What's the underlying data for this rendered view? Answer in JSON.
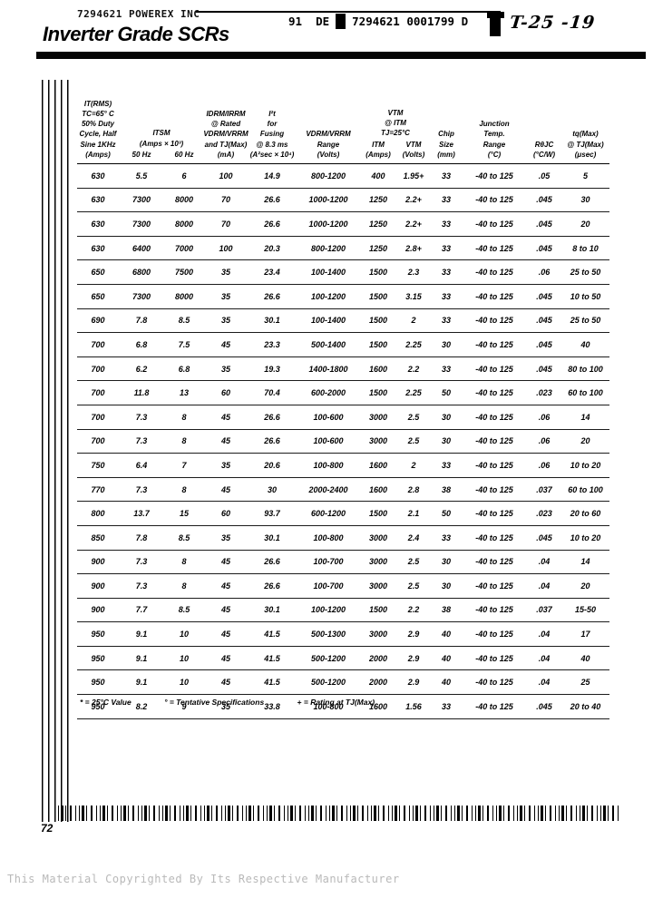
{
  "header": {
    "stamp": "7294621 POWEREX INC",
    "title": "Inverter Grade SCRs",
    "code_left": "91  DE",
    "code_right": "7294621 0001799 D",
    "handwritten_note": "T-25 -19"
  },
  "table": {
    "columns": [
      {
        "label": "IT(RMS)\nTC=65° C\n50% Duty\nCycle, Half\nSine 1KHz\n(Amps)"
      },
      {
        "label": "ITSM\n(Amps × 10³)",
        "subs": [
          "50 Hz",
          "60 Hz"
        ]
      },
      {
        "label": "IDRM/IRRM\n@ Rated\nVDRM/VRRM\nand TJ(Max)\n(mA)"
      },
      {
        "label": "I²t\nfor\nFusing\n@ 8.3 ms\n(A²sec × 10⁴)"
      },
      {
        "label": "VDRM/VRRM\nRange\n(Volts)"
      },
      {
        "label": "VTM\n@ ITM\nTJ=25°C",
        "subs": [
          "ITM\n(Amps)",
          "VTM\n(Volts)"
        ]
      },
      {
        "label": "Chip\nSize\n(mm)"
      },
      {
        "label": "Junction\nTemp.\nRange\n(°C)"
      },
      {
        "label": "RθJC\n(°C/W)"
      },
      {
        "label": "tq(Max)\n@ TJ(Max)\n(μsec)"
      }
    ],
    "rows": [
      [
        "630",
        "5.5",
        "6",
        "100",
        "14.9",
        "800-1200",
        "400",
        "1.95+",
        "33",
        "-40 to 125",
        ".05",
        "5"
      ],
      [
        "630",
        "7300",
        "8000",
        "70",
        "26.6",
        "1000-1200",
        "1250",
        "2.2+",
        "33",
        "-40 to 125",
        ".045",
        "30"
      ],
      [
        "630",
        "7300",
        "8000",
        "70",
        "26.6",
        "1000-1200",
        "1250",
        "2.2+",
        "33",
        "-40 to 125",
        ".045",
        "20"
      ],
      [
        "630",
        "6400",
        "7000",
        "100",
        "20.3",
        "800-1200",
        "1250",
        "2.8+",
        "33",
        "-40 to 125",
        ".045",
        "8 to 10"
      ],
      [
        "650",
        "6800",
        "7500",
        "35",
        "23.4",
        "100-1400",
        "1500",
        "2.3",
        "33",
        "-40 to 125",
        ".06",
        "25 to 50"
      ],
      [
        "650",
        "7300",
        "8000",
        "35",
        "26.6",
        "100-1200",
        "1500",
        "3.15",
        "33",
        "-40 to 125",
        ".045",
        "10 to 50"
      ],
      [
        "690",
        "7.8",
        "8.5",
        "35",
        "30.1",
        "100-1400",
        "1500",
        "2",
        "33",
        "-40 to 125",
        ".045",
        "25 to 50"
      ],
      [
        "700",
        "6.8",
        "7.5",
        "45",
        "23.3",
        "500-1400",
        "1500",
        "2.25",
        "30",
        "-40 to 125",
        ".045",
        "40"
      ],
      [
        "700",
        "6.2",
        "6.8",
        "35",
        "19.3",
        "1400-1800",
        "1600",
        "2.2",
        "33",
        "-40 to 125",
        ".045",
        "80 to 100"
      ],
      [
        "700",
        "11.8",
        "13",
        "60",
        "70.4",
        "600-2000",
        "1500",
        "2.25",
        "50",
        "-40 to 125",
        ".023",
        "60 to 100"
      ],
      [
        "700",
        "7.3",
        "8",
        "45",
        "26.6",
        "100-600",
        "3000",
        "2.5",
        "30",
        "-40 to 125",
        ".06",
        "14"
      ],
      [
        "700",
        "7.3",
        "8",
        "45",
        "26.6",
        "100-600",
        "3000",
        "2.5",
        "30",
        "-40 to 125",
        ".06",
        "20"
      ],
      [
        "750",
        "6.4",
        "7",
        "35",
        "20.6",
        "100-800",
        "1600",
        "2",
        "33",
        "-40 to 125",
        ".06",
        "10 to 20"
      ],
      [
        "770",
        "7.3",
        "8",
        "45",
        "30",
        "2000-2400",
        "1600",
        "2.8",
        "38",
        "-40 to 125",
        ".037",
        "60 to 100"
      ],
      [
        "800",
        "13.7",
        "15",
        "60",
        "93.7",
        "600-1200",
        "1500",
        "2.1",
        "50",
        "-40 to 125",
        ".023",
        "20 to 60"
      ],
      [
        "850",
        "7.8",
        "8.5",
        "35",
        "30.1",
        "100-800",
        "3000",
        "2.4",
        "33",
        "-40 to 125",
        ".045",
        "10 to 20"
      ],
      [
        "900",
        "7.3",
        "8",
        "45",
        "26.6",
        "100-700",
        "3000",
        "2.5",
        "30",
        "-40 to 125",
        ".04",
        "14"
      ],
      [
        "900",
        "7.3",
        "8",
        "45",
        "26.6",
        "100-700",
        "3000",
        "2.5",
        "30",
        "-40 to 125",
        ".04",
        "20"
      ],
      [
        "900",
        "7.7",
        "8.5",
        "45",
        "30.1",
        "100-1200",
        "1500",
        "2.2",
        "38",
        "-40 to 125",
        ".037",
        "15-50"
      ],
      [
        "950",
        "9.1",
        "10",
        "45",
        "41.5",
        "500-1300",
        "3000",
        "2.9",
        "40",
        "-40 to 125",
        ".04",
        "17"
      ],
      [
        "950",
        "9.1",
        "10",
        "45",
        "41.5",
        "500-1200",
        "2000",
        "2.9",
        "40",
        "-40 to 125",
        ".04",
        "40"
      ],
      [
        "950",
        "9.1",
        "10",
        "45",
        "41.5",
        "500-1200",
        "2000",
        "2.9",
        "40",
        "-40 to 125",
        ".04",
        "25"
      ],
      [
        "950",
        "8.2",
        "9",
        "35",
        "33.8",
        "100-800",
        "1600",
        "1.56",
        "33",
        "-40 to 125",
        ".045",
        "20 to 40"
      ]
    ]
  },
  "footnotes": [
    "* = 25°C Value",
    "° = Tentative Specifications",
    "+ = Rating at TJ(Max)"
  ],
  "page_number": "72",
  "copyright": "This Material Copyrighted By Its Respective Manufacturer"
}
